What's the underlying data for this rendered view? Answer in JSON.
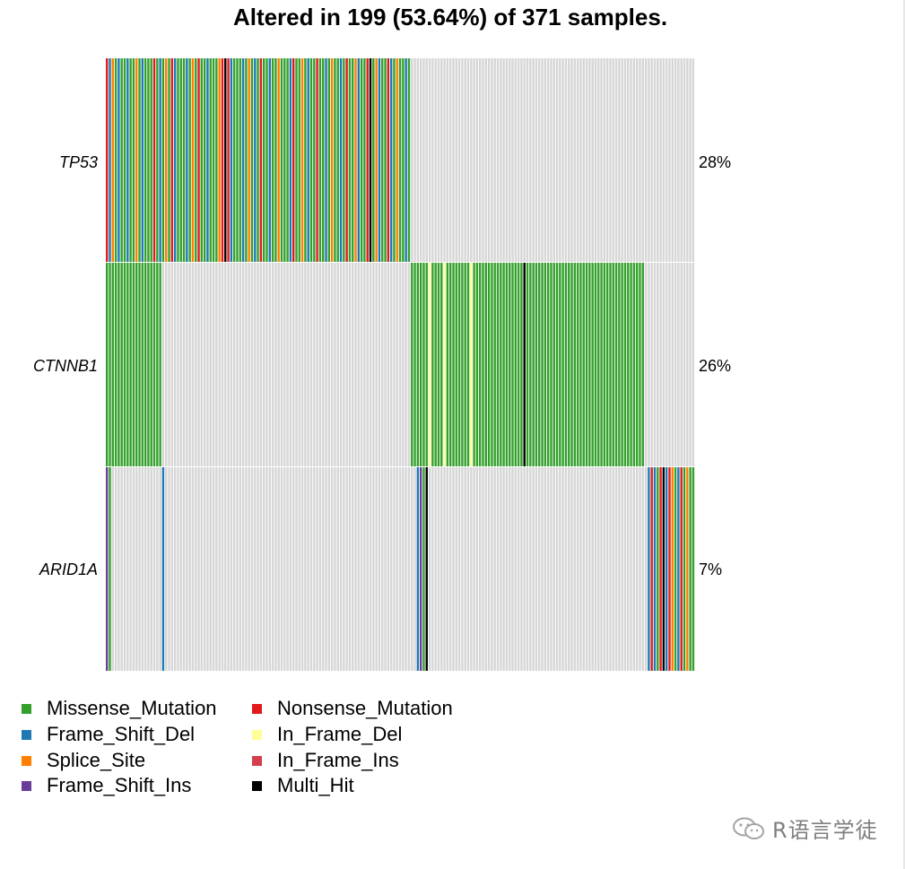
{
  "title": "Altered in 199 (53.64%) of 371 samples.",
  "watermark": "R语言学徒",
  "colors": {
    "Missense_Mutation": "#33a02c",
    "Nonsense_Mutation": "#e31a1c",
    "Frame_Shift_Del": "#1f78b4",
    "In_Frame_Del": "#ffff99",
    "Splice_Site": "#ff7f00",
    "In_Frame_Ins": "#d53e4f",
    "Frame_Shift_Ins": "#6a3d9a",
    "Multi_Hit": "#000000",
    "none": "#d6d6d6",
    "separator": "#ffffff"
  },
  "legend": [
    {
      "label": "Missense_Mutation",
      "color": "#33a02c"
    },
    {
      "label": "Nonsense_Mutation",
      "color": "#e31a1c"
    },
    {
      "label": "Frame_Shift_Del",
      "color": "#1f78b4"
    },
    {
      "label": "In_Frame_Del",
      "color": "#ffff99"
    },
    {
      "label": "Splice_Site",
      "color": "#ff7f00"
    },
    {
      "label": "In_Frame_Ins",
      "color": "#d53e4f"
    },
    {
      "label": "Frame_Shift_Ins",
      "color": "#6a3d9a"
    },
    {
      "label": "Multi_Hit",
      "color": "#000000"
    }
  ],
  "chart_data": {
    "type": "heatmap",
    "title": "Altered in 199 (53.64%) of 371 samples.",
    "n_samples_altered": 199,
    "n_samples_total": 371,
    "genes": [
      {
        "name": "TP53",
        "percent": "28%"
      },
      {
        "name": "CTNNB1",
        "percent": "26%"
      },
      {
        "name": "ARID1A",
        "percent": "7%"
      }
    ],
    "counts_note": "",
    "matrix": {
      "TP53": [
        "NS",
        "FSD",
        "SS",
        "MM",
        "FSD",
        "MM",
        "MM",
        "FSD",
        "MM",
        "MM",
        "SS",
        "MM",
        "FSD",
        "MM",
        "MM",
        "MM",
        "NS",
        "MM",
        "FSD",
        "MM",
        "SS",
        "MM",
        "NS",
        "FSD",
        "MM",
        "MM",
        "MM",
        "FSD",
        "MM",
        "SS",
        "MM",
        "NS",
        "MM",
        "MM",
        "FSD",
        "MM",
        "MM",
        "MM",
        "SS",
        "NS",
        "MHT",
        "NS",
        "FSD",
        "MM",
        "MM",
        "MM",
        "FSD",
        "MM",
        "SS",
        "MM",
        "FSD",
        "MM",
        "NS",
        "MM",
        "MM",
        "FSD",
        "MM",
        "MM",
        "SS",
        "MM",
        "MM",
        "MM",
        "FSD",
        "NS",
        "MM",
        "MM",
        "SS",
        "MM",
        "FSD",
        "MM",
        "MM",
        "NS",
        "MM",
        "MM",
        "FSD",
        "MM",
        "SS",
        "MM",
        "MM",
        "FSD",
        "MM",
        "NS",
        "MM",
        "MM",
        "SS",
        "FSD",
        "MM",
        "MM",
        "NS",
        "MHT",
        "MM",
        "SS",
        "FSD",
        "MM",
        "MM",
        "NS",
        "FSD",
        "MM",
        "SS",
        "MM",
        "MM",
        "FSD",
        "MM"
      ],
      "CTNNB1_start": 103,
      "ARID1A_first": [
        "FSI",
        "MM"
      ],
      "ARID1A_mid_cols": [
        18
      ],
      "ARID1A_tail": [
        "FSD",
        "NS",
        "FSD",
        "MM",
        "NS",
        "MHT",
        "FSD",
        "NS",
        "SS",
        "MM",
        "FSD",
        "NS",
        "MM",
        "SS",
        "MM",
        "MM"
      ]
    }
  }
}
